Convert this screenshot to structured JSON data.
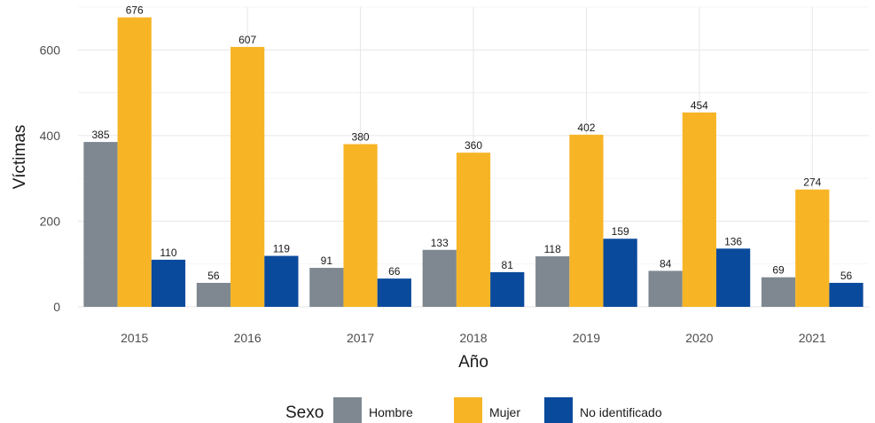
{
  "chart_data": {
    "type": "bar",
    "title": "",
    "xlabel": "Año",
    "ylabel": "Víctimas",
    "categories": [
      "2015",
      "2016",
      "2017",
      "2018",
      "2019",
      "2020",
      "2021"
    ],
    "series": [
      {
        "name": "Hombre",
        "color": "#7f8890",
        "values": [
          385,
          56,
          91,
          133,
          118,
          84,
          69
        ]
      },
      {
        "name": "Mujer",
        "color": "#f7b526",
        "values": [
          676,
          607,
          380,
          360,
          402,
          454,
          274
        ]
      },
      {
        "name": "No identificado",
        "color": "#0a4a9c",
        "values": [
          110,
          119,
          66,
          81,
          159,
          136,
          56
        ]
      }
    ],
    "ylim": [
      0,
      700
    ],
    "yticks": [
      "0",
      "200",
      "400",
      "600"
    ],
    "grid": true,
    "legend": {
      "title": "Sexo",
      "position": "bottom"
    }
  }
}
